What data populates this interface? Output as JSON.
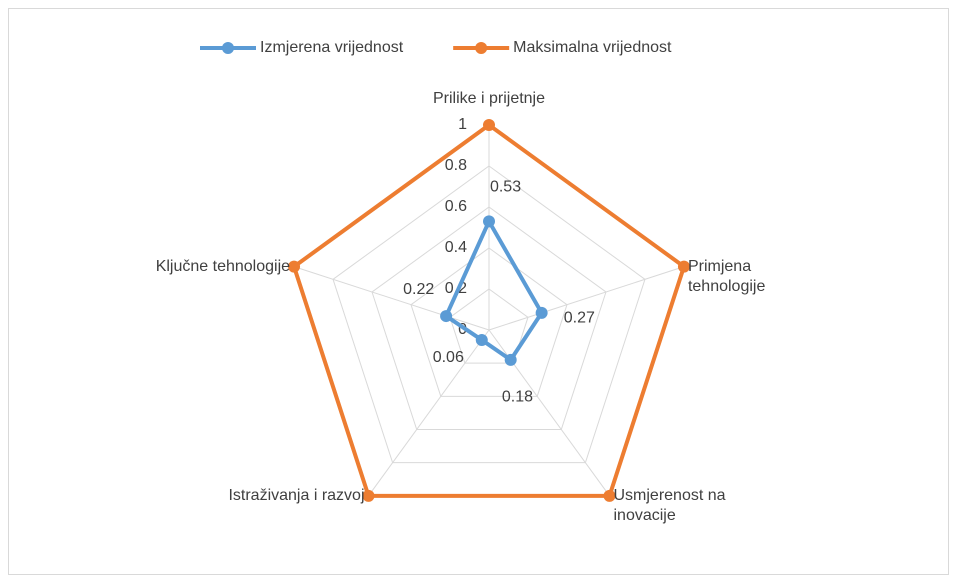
{
  "chart_data": {
    "type": "radar",
    "categories": [
      "Prilike i prijetnje",
      "Primjena tehnologije",
      "Usmjerenost na inovacije",
      "Istraživanja i razvoj",
      "Ključne tehnologije"
    ],
    "series": [
      {
        "name": "Izmjerena vrijednost",
        "color": "#5b9bd5",
        "values": [
          0.53,
          0.27,
          0.18,
          0.06,
          0.22
        ]
      },
      {
        "name": "Maksimalna vrijednost",
        "color": "#ed7d31",
        "values": [
          1,
          1,
          1,
          1,
          1
        ]
      }
    ],
    "ylim": [
      0,
      1
    ],
    "yticks": [
      0,
      0.2,
      0.4,
      0.6,
      0.8,
      1
    ],
    "grid": true,
    "legend": "top",
    "data_labels_series": 0
  }
}
